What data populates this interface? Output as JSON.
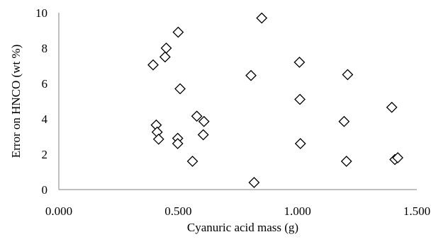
{
  "chart_data": {
    "type": "scatter",
    "title": "",
    "xlabel": "Cyanuric acid mass (g)",
    "ylabel": "Error on HNCO (wt %)",
    "xlim": [
      0,
      1.5
    ],
    "ylim": [
      0,
      10
    ],
    "x_ticks": [
      0,
      0.5,
      1.0,
      1.5
    ],
    "x_tick_labels": [
      "0.000",
      "0.500",
      "1.000",
      "1.500"
    ],
    "y_ticks": [
      0,
      2,
      4,
      6,
      8,
      10
    ],
    "y_tick_labels": [
      "0",
      "2",
      "4",
      "6",
      "8",
      "10"
    ],
    "grid": "none",
    "legend": "none",
    "marker": "diamond-open",
    "marker_color": "#000000",
    "series": [
      {
        "values": [
          {
            "x": 0.395,
            "y": 7.05
          },
          {
            "x": 0.445,
            "y": 7.5
          },
          {
            "x": 0.45,
            "y": 8.0
          },
          {
            "x": 0.5,
            "y": 8.9
          },
          {
            "x": 0.85,
            "y": 9.7
          },
          {
            "x": 0.508,
            "y": 5.7
          },
          {
            "x": 0.805,
            "y": 6.45
          },
          {
            "x": 1.008,
            "y": 7.2
          },
          {
            "x": 1.21,
            "y": 6.5
          },
          {
            "x": 1.01,
            "y": 5.1
          },
          {
            "x": 1.395,
            "y": 4.65
          },
          {
            "x": 0.408,
            "y": 3.65
          },
          {
            "x": 0.412,
            "y": 3.25
          },
          {
            "x": 0.418,
            "y": 2.85
          },
          {
            "x": 0.498,
            "y": 2.9
          },
          {
            "x": 0.498,
            "y": 2.6
          },
          {
            "x": 0.578,
            "y": 4.15
          },
          {
            "x": 0.608,
            "y": 3.85
          },
          {
            "x": 0.605,
            "y": 3.1
          },
          {
            "x": 0.56,
            "y": 1.6
          },
          {
            "x": 1.195,
            "y": 3.85
          },
          {
            "x": 1.012,
            "y": 2.6
          },
          {
            "x": 1.205,
            "y": 1.6
          },
          {
            "x": 1.408,
            "y": 1.7
          },
          {
            "x": 1.42,
            "y": 1.8
          },
          {
            "x": 0.818,
            "y": 0.4
          }
        ]
      }
    ]
  }
}
